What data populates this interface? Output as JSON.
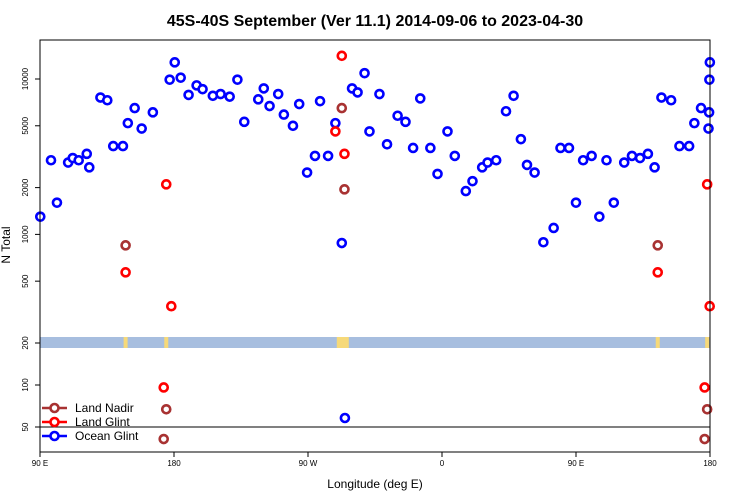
{
  "chart_data": {
    "type": "scatter",
    "title": "45S-40S September (Ver 11.1)   2014-09-06 to 2023-04-30",
    "xlabel": "Longitude (deg E)",
    "ylabel": "N Total",
    "y_scale": "log",
    "xlim": [
      90,
      540
    ],
    "x_ticks": [
      {
        "value": 90,
        "label": "90 E"
      },
      {
        "value": 180,
        "label": "180"
      },
      {
        "value": 270,
        "label": "90 W"
      },
      {
        "value": 360,
        "label": "0"
      },
      {
        "value": 450,
        "label": "90 E"
      },
      {
        "value": 540,
        "label": "180"
      }
    ],
    "y_ticks": [
      50,
      100,
      200,
      500,
      1000,
      2000,
      5000,
      10000
    ],
    "land_band_color": "#a7bedf",
    "land_mark_color": "#f6d979",
    "legend_position": "bottom-left",
    "series": [
      {
        "name": "Land Nadir",
        "color": "#a83232",
        "points": [
          [
            147.5,
            850
          ],
          [
            174.8,
            67
          ],
          [
            173.1,
            41
          ],
          [
            292.7,
            6500
          ],
          [
            294.5,
            1950
          ],
          [
            504.9,
            850
          ],
          [
            538.1,
            67
          ],
          [
            536.4,
            41
          ]
        ]
      },
      {
        "name": "Land Glint",
        "color": "#ff0000",
        "points": [
          [
            147.5,
            570
          ],
          [
            173.1,
            96
          ],
          [
            174.8,
            2100
          ],
          [
            178.2,
            345
          ],
          [
            288.4,
            4600
          ],
          [
            292.7,
            14100
          ],
          [
            294.5,
            3300
          ],
          [
            504.9,
            570
          ],
          [
            536.4,
            96
          ],
          [
            538.1,
            2100
          ],
          [
            539.8,
            345
          ]
        ]
      },
      {
        "name": "Ocean Glint",
        "color": "#0000ff",
        "points": [
          [
            90.2,
            1300
          ],
          [
            97.4,
            3000
          ],
          [
            101.4,
            1600
          ],
          [
            108.9,
            2900
          ],
          [
            112.0,
            3100
          ],
          [
            116.0,
            3000
          ],
          [
            121.4,
            3300
          ],
          [
            123.1,
            2700
          ],
          [
            130.6,
            7600
          ],
          [
            135.2,
            7300
          ],
          [
            139.2,
            3700
          ],
          [
            145.7,
            3700
          ],
          [
            149.0,
            5200
          ],
          [
            153.6,
            6500
          ],
          [
            158.3,
            4800
          ],
          [
            165.8,
            6100
          ],
          [
            177.1,
            9900
          ],
          [
            180.5,
            12800
          ],
          [
            184.5,
            10200
          ],
          [
            189.8,
            7900
          ],
          [
            195.2,
            9100
          ],
          [
            199.2,
            8600
          ],
          [
            206.1,
            7800
          ],
          [
            211.3,
            8000
          ],
          [
            217.4,
            7700
          ],
          [
            222.6,
            9900
          ],
          [
            227.2,
            5300
          ],
          [
            236.6,
            7400
          ],
          [
            240.3,
            8700
          ],
          [
            244.2,
            6700
          ],
          [
            250.0,
            8000
          ],
          [
            253.8,
            5900
          ],
          [
            259.9,
            5000
          ],
          [
            264.1,
            6900
          ],
          [
            269.4,
            2500
          ],
          [
            274.7,
            3200
          ],
          [
            278.1,
            7200
          ],
          [
            283.5,
            3200
          ],
          [
            288.4,
            5200
          ],
          [
            292.7,
            880
          ],
          [
            294.8,
            58
          ],
          [
            299.6,
            8700
          ],
          [
            303.3,
            8200
          ],
          [
            308.0,
            10900
          ],
          [
            311.3,
            4600
          ],
          [
            318.0,
            8000
          ],
          [
            323.1,
            3800
          ],
          [
            330.2,
            5800
          ],
          [
            335.5,
            5300
          ],
          [
            340.6,
            3600
          ],
          [
            345.4,
            7500
          ],
          [
            352.2,
            3600
          ],
          [
            357.0,
            2450
          ],
          [
            363.7,
            4600
          ],
          [
            368.6,
            3200
          ],
          [
            376.0,
            1900
          ],
          [
            380.5,
            2200
          ],
          [
            387.0,
            2700
          ],
          [
            390.6,
            2900
          ],
          [
            396.4,
            3000
          ],
          [
            403.0,
            6200
          ],
          [
            408.1,
            7800
          ],
          [
            413.0,
            4100
          ],
          [
            417.1,
            2800
          ],
          [
            422.2,
            2500
          ],
          [
            428.1,
            890
          ],
          [
            435.0,
            1100
          ],
          [
            439.6,
            3600
          ],
          [
            445.3,
            3600
          ],
          [
            450.0,
            1600
          ],
          [
            454.8,
            3000
          ],
          [
            460.5,
            3200
          ],
          [
            465.7,
            1300
          ],
          [
            470.5,
            3000
          ],
          [
            475.4,
            1600
          ],
          [
            482.4,
            2900
          ],
          [
            487.6,
            3200
          ],
          [
            493.0,
            3100
          ],
          [
            498.3,
            3300
          ],
          [
            502.8,
            2700
          ],
          [
            507.4,
            7600
          ],
          [
            513.9,
            7300
          ],
          [
            519.5,
            3700
          ],
          [
            526.0,
            3700
          ],
          [
            529.5,
            5200
          ],
          [
            534.0,
            6500
          ],
          [
            539.0,
            4800
          ],
          [
            539.4,
            6100
          ],
          [
            539.6,
            9900
          ],
          [
            539.9,
            12800
          ]
        ]
      }
    ]
  }
}
